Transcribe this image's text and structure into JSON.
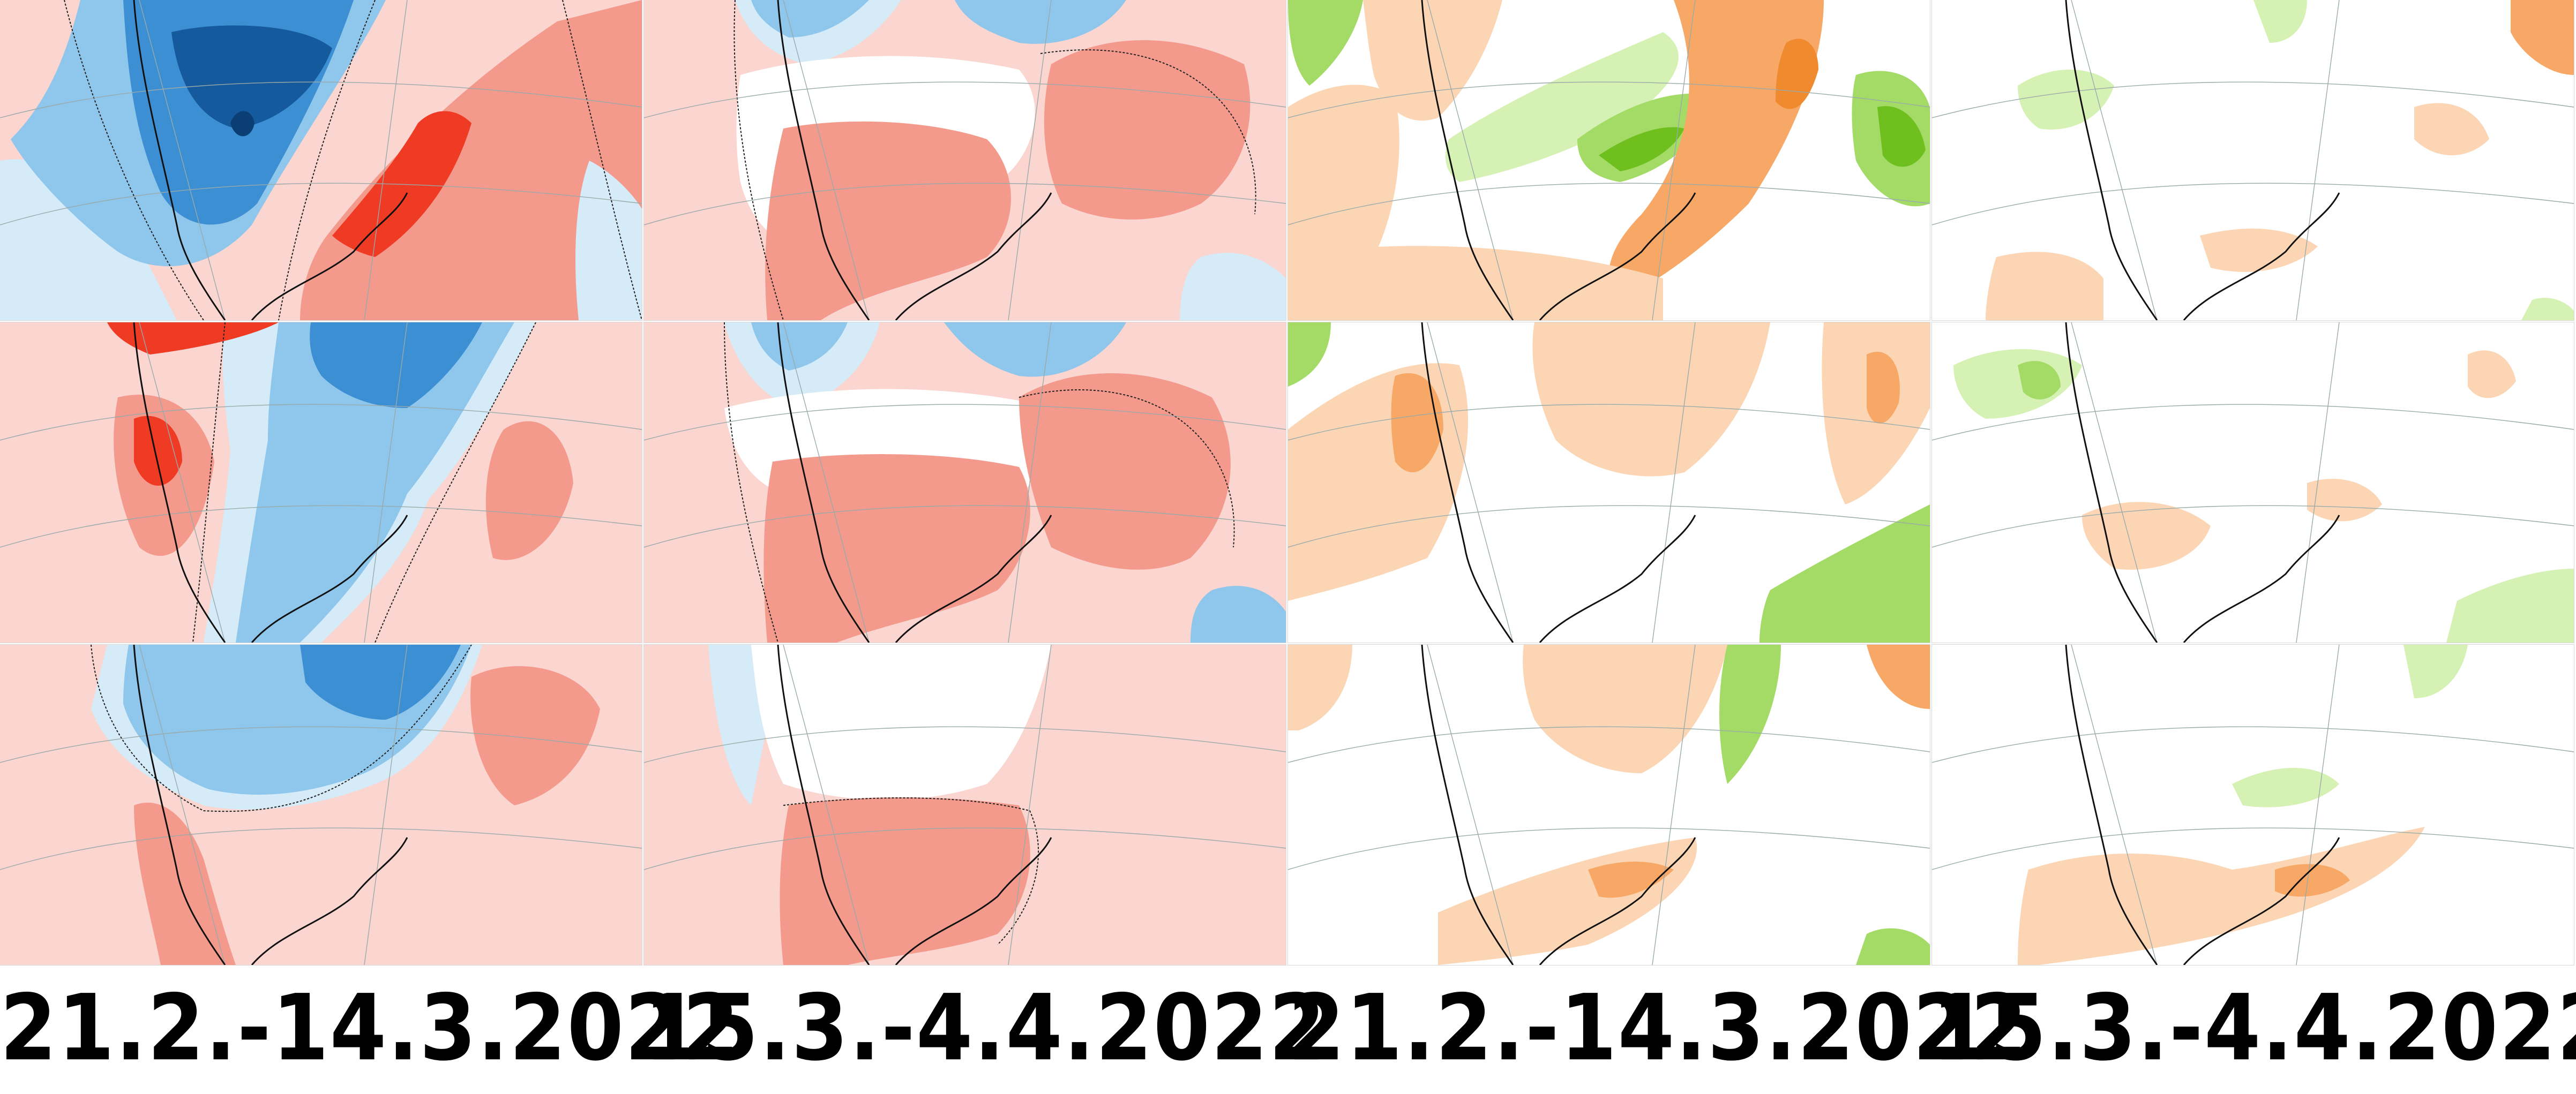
{
  "labels": [
    "21.2.-14.3.2022",
    "15.3.-4.4.2022",
    "21.2.-14.3.2022",
    "15.3.-4.4.2022"
  ],
  "panels": [
    {
      "column": 1,
      "row": 1,
      "variable": "temperature-anomaly",
      "colors": [
        "#fbd5cf",
        "#f49a8c",
        "#ef3a24",
        "#d6ebf8",
        "#8fc6ec",
        "#3d8fd3",
        "#145a9c"
      ]
    },
    {
      "column": 1,
      "row": 2,
      "variable": "temperature-anomaly",
      "colors": [
        "#fbd5cf",
        "#f49a8c",
        "#ef3a24",
        "#d6ebf8",
        "#8fc6ec",
        "#3d8fd3"
      ]
    },
    {
      "column": 1,
      "row": 3,
      "variable": "temperature-anomaly",
      "colors": [
        "#fbd5cf",
        "#f49a8c",
        "#d6ebf8",
        "#8fc6ec",
        "#3d8fd3"
      ]
    },
    {
      "column": 2,
      "row": 1,
      "variable": "temperature-anomaly",
      "colors": [
        "#fbd5cf",
        "#f49a8c",
        "#d6ebf8",
        "#8fc6ec"
      ]
    },
    {
      "column": 2,
      "row": 2,
      "variable": "temperature-anomaly",
      "colors": [
        "#fbd5cf",
        "#f49a8c",
        "#d6ebf8",
        "#8fc6ec"
      ]
    },
    {
      "column": 2,
      "row": 3,
      "variable": "temperature-anomaly",
      "colors": [
        "#fbd5cf",
        "#f49a8c",
        "#d6ebf8"
      ]
    },
    {
      "column": 3,
      "row": 1,
      "variable": "precipitation-anomaly",
      "colors": [
        "#fcd6b4",
        "#f7a866",
        "#f08a2e",
        "#d6f1b4",
        "#a3db66",
        "#6fbf1e"
      ]
    },
    {
      "column": 3,
      "row": 2,
      "variable": "precipitation-anomaly",
      "colors": [
        "#fcd6b4",
        "#f7a866",
        "#d6f1b4",
        "#a3db66"
      ]
    },
    {
      "column": 3,
      "row": 3,
      "variable": "precipitation-anomaly",
      "colors": [
        "#fcd6b4",
        "#f7a866",
        "#d6f1b4",
        "#a3db66"
      ]
    },
    {
      "column": 4,
      "row": 1,
      "variable": "precipitation-anomaly",
      "colors": [
        "#fcd6b4",
        "#f7a866",
        "#d6f1b4"
      ]
    },
    {
      "column": 4,
      "row": 2,
      "variable": "precipitation-anomaly",
      "colors": [
        "#fcd6b4",
        "#d6f1b4",
        "#a3db66"
      ]
    },
    {
      "column": 4,
      "row": 3,
      "variable": "precipitation-anomaly",
      "colors": [
        "#fcd6b4",
        "#f7a866",
        "#d6f1b4"
      ]
    }
  ]
}
